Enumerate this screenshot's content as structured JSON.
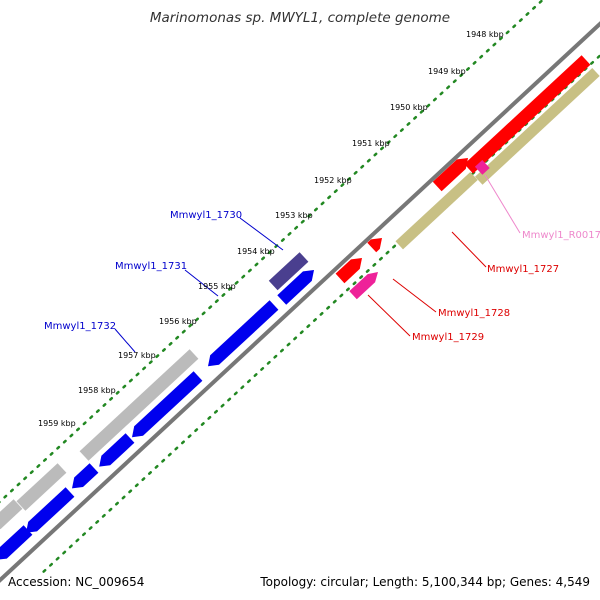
{
  "title": "Marinomonas sp. MWYL1, complete genome",
  "footer": {
    "accession": "Accession: NC_009654",
    "topology": "Topology: circular; Length: 5,100,344 bp; Genes: 4,549"
  },
  "scale_labels": [
    "1948 kbp",
    "1949 kbp",
    "1950 kbp",
    "1951 kbp",
    "1952 kbp",
    "1953 kbp",
    "1954 kbp",
    "1955 kbp",
    "1956 kbp",
    "1957 kbp",
    "1958 kbp",
    "1959 kbp"
  ],
  "gene_labels": [
    {
      "text": "Mmwyl1_1730",
      "color": "#0000cc"
    },
    {
      "text": "Mmwyl1_1731",
      "color": "#0000cc"
    },
    {
      "text": "Mmwyl1_1732",
      "color": "#0000cc"
    },
    {
      "text": "Mmwyl1_R0017",
      "color": "#ee88cc"
    },
    {
      "text": "Mmwyl1_1727",
      "color": "#dd0000"
    },
    {
      "text": "Mmwyl1_1728",
      "color": "#dd0000"
    },
    {
      "text": "Mmwyl1_1729",
      "color": "#dd0000"
    }
  ],
  "colors": {
    "backbone": "#777777",
    "forward_cds": "#ff0000",
    "reverse_cds": "#0000ee",
    "gray_feature": "#bbbbbb",
    "olive_feature": "#c8c084",
    "dark_purple": "#4a3f8f",
    "pink_feature": "#ee2299",
    "ruler": "#228822"
  }
}
